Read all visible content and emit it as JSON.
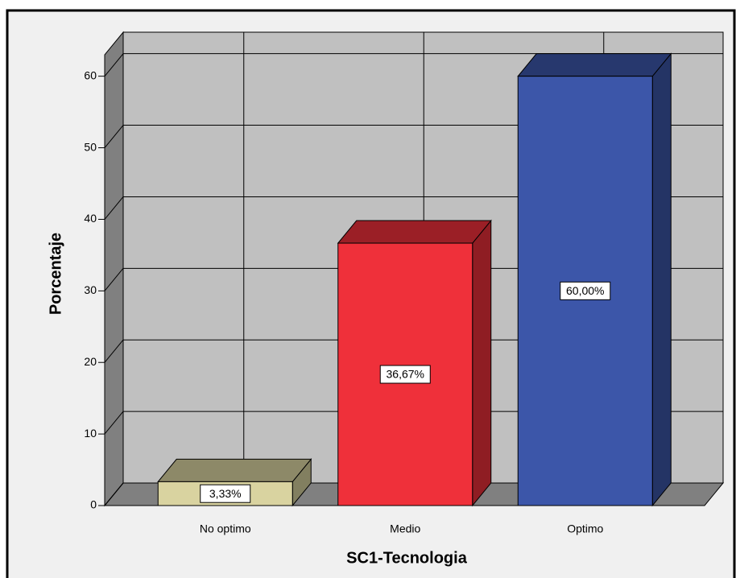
{
  "chart_data": {
    "type": "bar",
    "x_label": "SC1-Tecnologia",
    "y_label": "Porcentaje",
    "categories": [
      "No optimo",
      "Medio",
      "Optimo"
    ],
    "values": [
      3.33,
      36.67,
      60
    ],
    "value_labels": [
      "3,33%",
      "36,67%",
      "60,00%"
    ],
    "colors": [
      "#d9d3a0",
      "#ef303a",
      "#3c56a9"
    ],
    "ylim": [
      0,
      63
    ],
    "yticks": [
      0,
      10,
      20,
      30,
      40,
      50,
      60
    ],
    "grid": true
  }
}
